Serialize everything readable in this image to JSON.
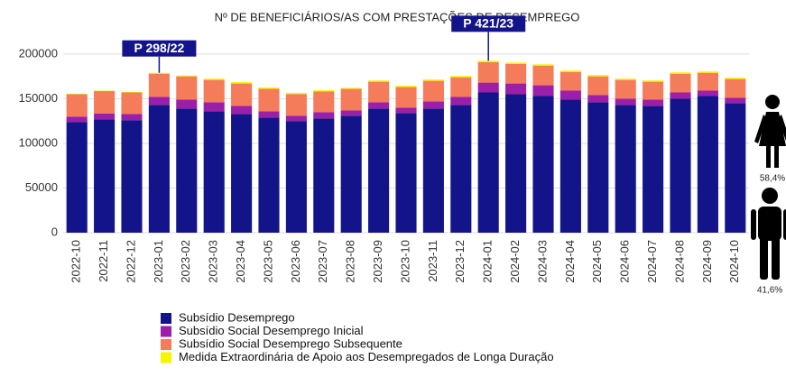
{
  "chart_data": {
    "type": "stacked_bar",
    "title": "Nº DE BENEFICIÁRIOS/AS COM PRESTAÇÕES DE DESEMPREGO",
    "categories": [
      "2022-10",
      "2022-11",
      "2022-12",
      "2023-01",
      "2023-02",
      "2023-03",
      "2023-04",
      "2023-05",
      "2023-06",
      "2023-07",
      "2023-08",
      "2023-09",
      "2023-10",
      "2023-11",
      "2023-12",
      "2024-01",
      "2024-02",
      "2024-03",
      "2024-04",
      "2024-05",
      "2024-06",
      "2024-07",
      "2024-08",
      "2024-09",
      "2024-10"
    ],
    "series": [
      {
        "name": "Subsídio Desemprego",
        "color": "#14148a",
        "values": [
          124000,
          127000,
          126000,
          143000,
          139000,
          136000,
          133000,
          129000,
          125000,
          128000,
          131000,
          139000,
          134000,
          139000,
          143000,
          157000,
          155000,
          153000,
          149000,
          146000,
          143000,
          142000,
          150000,
          153000,
          145000
        ]
      },
      {
        "name": "Subsídio Social Desemprego Inicial",
        "color": "#9b1fa8",
        "values": [
          6000,
          6500,
          7000,
          9000,
          10000,
          10000,
          9000,
          7000,
          6000,
          7000,
          6000,
          7000,
          6000,
          8000,
          9000,
          11000,
          12000,
          12000,
          10000,
          8000,
          7000,
          7000,
          7000,
          6000,
          6000
        ]
      },
      {
        "name": "Subsídio Social Desemprego Subsequente",
        "color": "#f47c5a",
        "values": [
          25000,
          25000,
          24000,
          26000,
          26000,
          25000,
          25000,
          25000,
          24000,
          23000,
          24000,
          23000,
          23000,
          23000,
          22000,
          23000,
          22000,
          22000,
          21000,
          21000,
          21000,
          20000,
          21000,
          20000,
          21000
        ]
      },
      {
        "name": "Medida Extraordinária de Apoio aos Desempregados de Longa Duração",
        "color": "#f5f500",
        "values": [
          500,
          500,
          500,
          1000,
          1000,
          1500,
          1500,
          1500,
          1500,
          1500,
          1000,
          1500,
          1500,
          1500,
          1500,
          1500,
          1500,
          1500,
          1500,
          1500,
          1500,
          1500,
          1500,
          1500,
          1500
        ]
      }
    ],
    "ylim": [
      0,
      210000
    ],
    "yticks": [
      0,
      50000,
      100000,
      150000,
      200000
    ],
    "grid": true,
    "annotations": [
      {
        "text": "P 298/22",
        "x": "2023-01"
      },
      {
        "text": "P 421/23",
        "x": "2024-01"
      }
    ],
    "side_labels": [
      "58,4%",
      "41,6%"
    ]
  }
}
